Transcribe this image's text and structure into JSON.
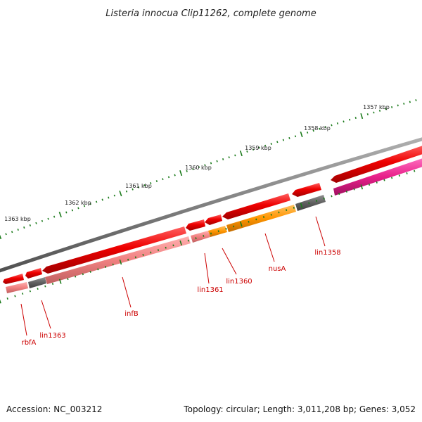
{
  "title": "Listeria innocua Clip11262, complete genome",
  "scale_labels": [
    "1357 kbp",
    "1358 kbp",
    "1359 kbp",
    "1360 kbp",
    "1361 kbp",
    "1362 kbp",
    "1363 kbp"
  ],
  "genes": [
    {
      "label": "lin1358",
      "type": "cds"
    },
    {
      "label": "nusA",
      "type": "cds"
    },
    {
      "label": "lin1360",
      "type": "cds"
    },
    {
      "label": "lin1361",
      "type": "cds"
    },
    {
      "label": "infB",
      "type": "cds"
    },
    {
      "label": "lin1363",
      "type": "cds"
    },
    {
      "label": "rbfA",
      "type": "cds"
    }
  ],
  "colors": {
    "backbone": "#808080",
    "cds_forward": "#e00000",
    "cds_light": "#f08080",
    "hypothetical": "#606060",
    "highlight": "#ff8c00",
    "rna": "#e0207a",
    "ticks": "#1a7a1a",
    "label_line": "#cc0000"
  },
  "footer": {
    "accession": "Accession: NC_003212",
    "info": "Topology: circular; Length: 3,011,208 bp; Genes: 3,052"
  }
}
